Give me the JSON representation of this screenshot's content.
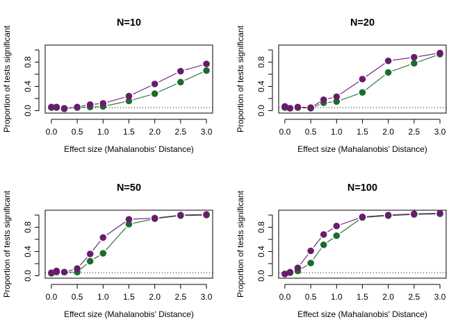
{
  "chart_data": [
    {
      "type": "line",
      "title": "N=10",
      "xlabel": "Effect size (Mahalanobis' Distance)",
      "ylabel": "Proportion of tests significant",
      "x": [
        0,
        0.1,
        0.25,
        0.5,
        0.75,
        1.0,
        1.5,
        2.0,
        2.5,
        3.0
      ],
      "xticks": [
        "0.0",
        "0.5",
        "1.0",
        "1.5",
        "2.0",
        "2.5",
        "3.0"
      ],
      "yticks": [
        "0.0",
        "0.4",
        "0.8"
      ],
      "ref_line": 0.05,
      "series": [
        {
          "color": "#6a1b6e",
          "values": [
            0.06,
            0.06,
            0.03,
            0.06,
            0.1,
            0.12,
            0.24,
            0.44,
            0.65,
            0.77
          ]
        },
        {
          "color": "#1d6b2e",
          "values": [
            0.05,
            0.05,
            0.04,
            0.05,
            0.06,
            0.07,
            0.16,
            0.28,
            0.47,
            0.66
          ]
        }
      ]
    },
    {
      "type": "line",
      "title": "N=20",
      "xlabel": "Effect size (Mahalanobis' Distance)",
      "ylabel": "Proportion of tests significant",
      "x": [
        0,
        0.1,
        0.25,
        0.5,
        0.75,
        1.0,
        1.5,
        2.0,
        2.5,
        3.0
      ],
      "xticks": [
        "0.0",
        "0.5",
        "1.0",
        "1.5",
        "2.0",
        "2.5",
        "3.0"
      ],
      "yticks": [
        "0.0",
        "0.4",
        "0.8"
      ],
      "ref_line": 0.05,
      "series": [
        {
          "color": "#6a1b6e",
          "values": [
            0.07,
            0.04,
            0.06,
            0.05,
            0.18,
            0.23,
            0.52,
            0.82,
            0.88,
            0.95
          ]
        },
        {
          "color": "#1d6b2e",
          "values": [
            0.05,
            0.04,
            0.05,
            0.04,
            0.13,
            0.15,
            0.3,
            0.63,
            0.78,
            0.93
          ]
        }
      ]
    },
    {
      "type": "line",
      "title": "N=50",
      "xlabel": "Effect size (Mahalanobis' Distance)",
      "ylabel": "Proportion of tests significant",
      "x": [
        0,
        0.1,
        0.25,
        0.5,
        0.75,
        1.0,
        1.5,
        2.0,
        2.5,
        3.0
      ],
      "xticks": [
        "0.0",
        "0.5",
        "1.0",
        "1.5",
        "2.0",
        "2.5",
        "3.0"
      ],
      "yticks": [
        "0.0",
        "0.4",
        "0.8"
      ],
      "ref_line": 0.05,
      "series": [
        {
          "color": "#6a1b6e",
          "values": [
            0.05,
            0.08,
            0.06,
            0.12,
            0.36,
            0.63,
            0.93,
            0.95,
            1.0,
            1.01
          ]
        },
        {
          "color": "#1d6b2e",
          "values": [
            0.04,
            0.06,
            0.06,
            0.06,
            0.24,
            0.37,
            0.85,
            0.94,
            0.99,
            1.0
          ]
        }
      ]
    },
    {
      "type": "line",
      "title": "N=100",
      "xlabel": "Effect size (Mahalanobis' Distance)",
      "ylabel": "Proportion of tests significant",
      "x": [
        0,
        0.1,
        0.25,
        0.5,
        0.75,
        1.0,
        1.5,
        2.0,
        2.5,
        3.0
      ],
      "xticks": [
        "0.0",
        "0.5",
        "1.0",
        "1.5",
        "2.0",
        "2.5",
        "3.0"
      ],
      "yticks": [
        "0.0",
        "0.4",
        "0.8"
      ],
      "ref_line": 0.05,
      "series": [
        {
          "color": "#6a1b6e",
          "values": [
            0.03,
            0.06,
            0.13,
            0.41,
            0.68,
            0.82,
            0.97,
            1.0,
            1.02,
            1.03
          ]
        },
        {
          "color": "#1d6b2e",
          "values": [
            0.03,
            0.05,
            0.08,
            0.21,
            0.51,
            0.66,
            0.96,
            0.99,
            1.01,
            1.02
          ]
        }
      ]
    }
  ]
}
